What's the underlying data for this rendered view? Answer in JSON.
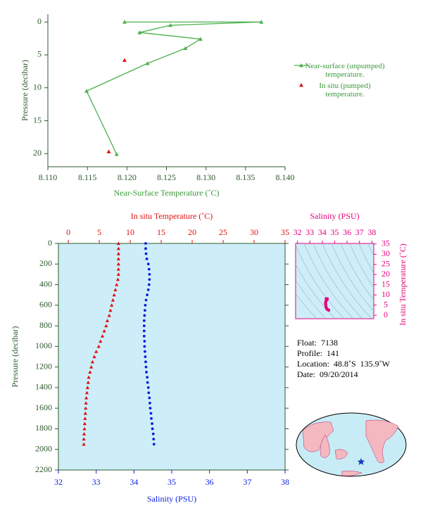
{
  "chart_data": [
    {
      "type": "line",
      "xlabel": "Near-Surface Temperature (˚C)",
      "ylabel": "Pressure (decibar)",
      "xlim": [
        8.11,
        8.14
      ],
      "xticks": [
        {
          "value": 8.11,
          "label": "8.110"
        },
        8.115,
        {
          "value": 8.12,
          "label": "8.120"
        },
        8.125,
        {
          "value": 8.13,
          "label": "8.130"
        },
        8.135,
        {
          "value": 8.14,
          "label": "8.140"
        }
      ],
      "ylim": [
        -1.2,
        22
      ],
      "y_inverted": true,
      "yticks": [
        0,
        5,
        10,
        15,
        20
      ],
      "series": [
        {
          "name": "Near-surface (unpumped) temperature.",
          "color": "#4cb04c",
          "line": true,
          "x": [
            8.1197,
            8.137,
            8.1255,
            8.1216,
            8.1293,
            8.1274,
            8.1226,
            8.1149,
            8.1187
          ],
          "y": [
            0,
            0,
            0.5,
            1.6,
            2.6,
            4.0,
            6.3,
            10.5,
            20.1
          ]
        },
        {
          "name": "In situ (pumped) temperature.",
          "color": "#e01010",
          "line": false,
          "x": [
            8.1197,
            8.1177
          ],
          "y": [
            5.8,
            19.7
          ]
        }
      ]
    },
    {
      "type": "profile",
      "xlabel": "Salinity (PSU)",
      "x2label": "In situ Temperature (˚C)",
      "ylabel": "Pressure (decibar)",
      "xlim": [
        32,
        38
      ],
      "xticks": [
        32,
        33,
        34,
        35,
        36,
        37,
        38
      ],
      "x2lim": [
        -1.6,
        35
      ],
      "x2ticks": [
        0,
        5,
        10,
        15,
        20,
        25,
        30,
        35
      ],
      "ylim": [
        0,
        2200
      ],
      "y_inverted": true,
      "yticks": [
        0,
        200,
        400,
        600,
        800,
        1000,
        1200,
        1400,
        1600,
        1800,
        2000,
        2200
      ],
      "background": "#cdeef8",
      "y": [
        0,
        50,
        100,
        150,
        200,
        250,
        300,
        350,
        400,
        450,
        500,
        550,
        600,
        650,
        700,
        750,
        800,
        850,
        900,
        950,
        1000,
        1050,
        1100,
        1150,
        1200,
        1250,
        1300,
        1350,
        1400,
        1450,
        1500,
        1550,
        1600,
        1650,
        1700,
        1750,
        1800,
        1850,
        1900,
        1950
      ],
      "series": [
        {
          "axis": "x2",
          "color": "#e01010",
          "marker": "triangle",
          "values": [
            8.1,
            8.1,
            8.1,
            8.1,
            8.1,
            8.1,
            8.1,
            8.0,
            7.8,
            7.6,
            7.4,
            7.2,
            7.0,
            6.8,
            6.6,
            6.3,
            6.1,
            5.8,
            5.5,
            5.2,
            4.9,
            4.5,
            4.2,
            3.9,
            3.7,
            3.5,
            3.3,
            3.2,
            3.1,
            3.0,
            2.9,
            2.85,
            2.8,
            2.75,
            2.7,
            2.65,
            2.6,
            2.55,
            2.5,
            2.5
          ]
        },
        {
          "axis": "x",
          "color": "#0a1ee0",
          "marker": "circle",
          "values": [
            34.31,
            34.31,
            34.32,
            34.34,
            34.38,
            34.4,
            34.41,
            34.41,
            34.4,
            34.38,
            34.35,
            34.32,
            34.3,
            34.29,
            34.28,
            34.27,
            34.27,
            34.27,
            34.27,
            34.28,
            34.28,
            34.29,
            34.3,
            34.31,
            34.32,
            34.33,
            34.35,
            34.36,
            34.38,
            34.39,
            34.41,
            34.42,
            34.43,
            34.45,
            34.46,
            34.48,
            34.49,
            34.51,
            34.52,
            34.53
          ]
        }
      ]
    },
    {
      "type": "ts",
      "xlabel": "Salinity (PSU)",
      "ylabel": "In situ Temperature (˚C)",
      "xlim": [
        31.85,
        38.15
      ],
      "xticks": [
        32,
        33,
        34,
        35,
        36,
        37,
        38
      ],
      "ylim": [
        -1.7,
        35.3
      ],
      "yticks": [
        0,
        5,
        10,
        15,
        20,
        25,
        30,
        35
      ],
      "color": "#e6007e",
      "background": "#cdeef8"
    }
  ],
  "float_info": [
    {
      "label": "Float:",
      "value": "7138"
    },
    {
      "label": "Profile:",
      "value": "141"
    },
    {
      "label": "Location:",
      "value": "48.8˚S  135.9˚W"
    },
    {
      "label": "Date:",
      "value": "09/20/2014"
    }
  ]
}
